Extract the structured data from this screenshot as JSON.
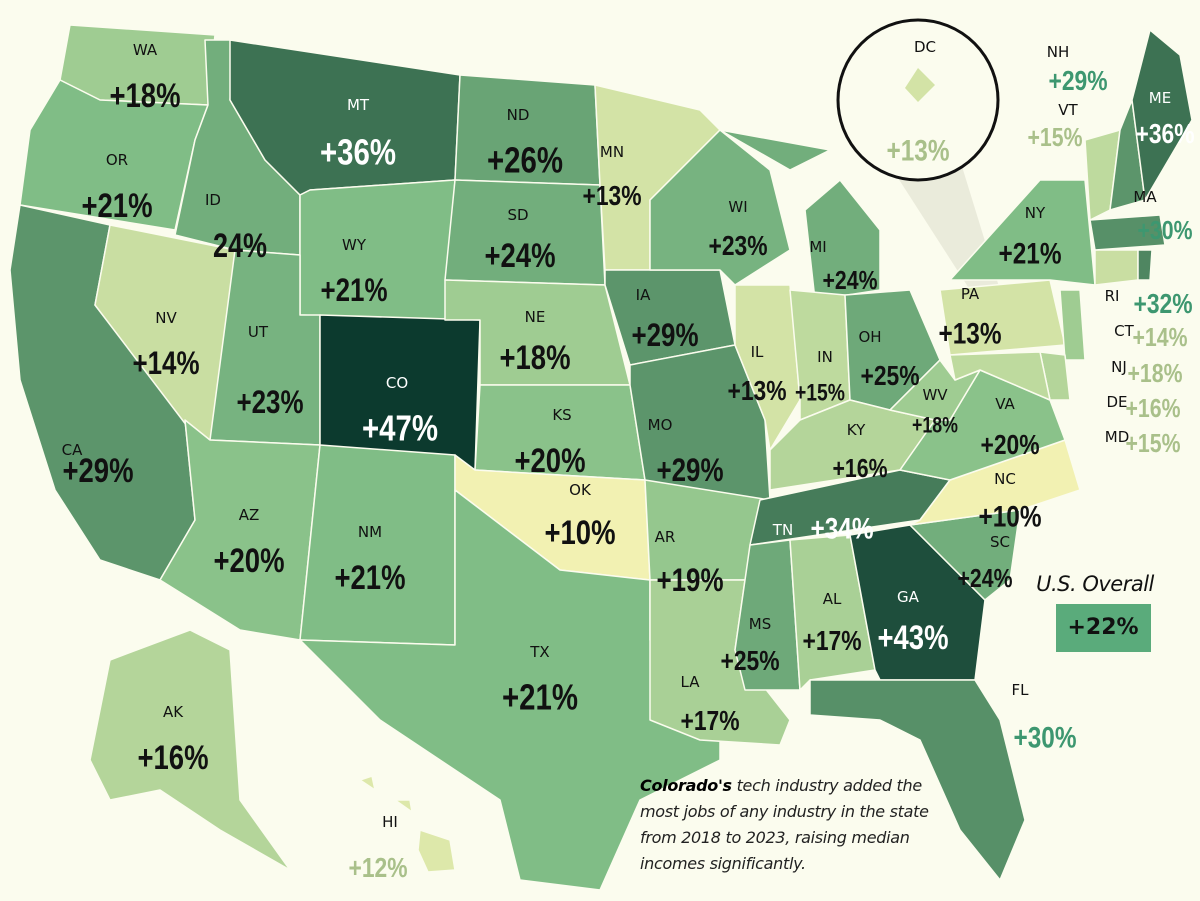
{
  "states": [
    {
      "abbr": "WA",
      "label": "+18%",
      "value": 18
    },
    {
      "abbr": "OR",
      "label": "+21%",
      "value": 21
    },
    {
      "abbr": "CA",
      "label": "+29%",
      "value": 29
    },
    {
      "abbr": "NV",
      "label": "+14%",
      "value": 14
    },
    {
      "abbr": "ID",
      "label": "24%",
      "value": 24
    },
    {
      "abbr": "MT",
      "label": "+36%",
      "value": 36
    },
    {
      "abbr": "WY",
      "label": "+21%",
      "value": 21
    },
    {
      "abbr": "UT",
      "label": "+23%",
      "value": 23
    },
    {
      "abbr": "CO",
      "label": "+47%",
      "value": 47
    },
    {
      "abbr": "AZ",
      "label": "+20%",
      "value": 20
    },
    {
      "abbr": "NM",
      "label": "+21%",
      "value": 21
    },
    {
      "abbr": "ND",
      "label": "+26%",
      "value": 26
    },
    {
      "abbr": "SD",
      "label": "+24%",
      "value": 24
    },
    {
      "abbr": "NE",
      "label": "+18%",
      "value": 18
    },
    {
      "abbr": "KS",
      "label": "+20%",
      "value": 20
    },
    {
      "abbr": "OK",
      "label": "+10%",
      "value": 10
    },
    {
      "abbr": "TX",
      "label": "+21%",
      "value": 21
    },
    {
      "abbr": "MN",
      "label": "+13%",
      "value": 13
    },
    {
      "abbr": "IA",
      "label": "+29%",
      "value": 29
    },
    {
      "abbr": "MO",
      "label": "+29%",
      "value": 29
    },
    {
      "abbr": "AR",
      "label": "+19%",
      "value": 19
    },
    {
      "abbr": "LA",
      "label": "+17%",
      "value": 17
    },
    {
      "abbr": "WI",
      "label": "+23%",
      "value": 23
    },
    {
      "abbr": "IL",
      "label": "+13%",
      "value": 13
    },
    {
      "abbr": "MI",
      "label": "+24%",
      "value": 24
    },
    {
      "abbr": "IN",
      "label": "+15%",
      "value": 15
    },
    {
      "abbr": "OH",
      "label": "+25%",
      "value": 25
    },
    {
      "abbr": "KY",
      "label": "+16%",
      "value": 16
    },
    {
      "abbr": "TN",
      "label": "+34%",
      "value": 34
    },
    {
      "abbr": "MS",
      "label": "+25%",
      "value": 25
    },
    {
      "abbr": "AL",
      "label": "+17%",
      "value": 17
    },
    {
      "abbr": "GA",
      "label": "+43%",
      "value": 43
    },
    {
      "abbr": "FL",
      "label": "+30%",
      "value": 30
    },
    {
      "abbr": "SC",
      "label": "+24%",
      "value": 24
    },
    {
      "abbr": "NC",
      "label": "+10%",
      "value": 10
    },
    {
      "abbr": "VA",
      "label": "+20%",
      "value": 20
    },
    {
      "abbr": "WV",
      "label": "+18%",
      "value": 18
    },
    {
      "abbr": "PA",
      "label": "+13%",
      "value": 13
    },
    {
      "abbr": "NY",
      "label": "+21%",
      "value": 21
    },
    {
      "abbr": "NJ",
      "label": "+18%",
      "value": 18
    },
    {
      "abbr": "DE",
      "label": "+16%",
      "value": 16
    },
    {
      "abbr": "MD",
      "label": "+15%",
      "value": 15
    },
    {
      "abbr": "CT",
      "label": "+14%",
      "value": 14
    },
    {
      "abbr": "RI",
      "label": "+32%",
      "value": 32
    },
    {
      "abbr": "MA",
      "label": "+30%",
      "value": 30
    },
    {
      "abbr": "VT",
      "label": "+15%",
      "value": 15
    },
    {
      "abbr": "NH",
      "label": "+29%",
      "value": 29
    },
    {
      "abbr": "ME",
      "label": "+36%",
      "value": 36
    },
    {
      "abbr": "AK",
      "label": "+16%",
      "value": 16
    },
    {
      "abbr": "HI",
      "label": "+12%",
      "value": 12
    },
    {
      "abbr": "DC",
      "label": "+13%",
      "value": 13
    }
  ],
  "color_scale": {
    "low": "#f2f1b2",
    "mid": "#7fbd86",
    "high": "#0c3a2e",
    "min": 10,
    "max": 47
  },
  "legend": {
    "title": "U.S. Overall",
    "value": "+22%",
    "color": "#5aab7b"
  },
  "caption": {
    "bold": "Colorado's",
    "text": " tech industry added the most jobs of any industry in the state from 2018 to 2023, raising median incomes significantly."
  }
}
